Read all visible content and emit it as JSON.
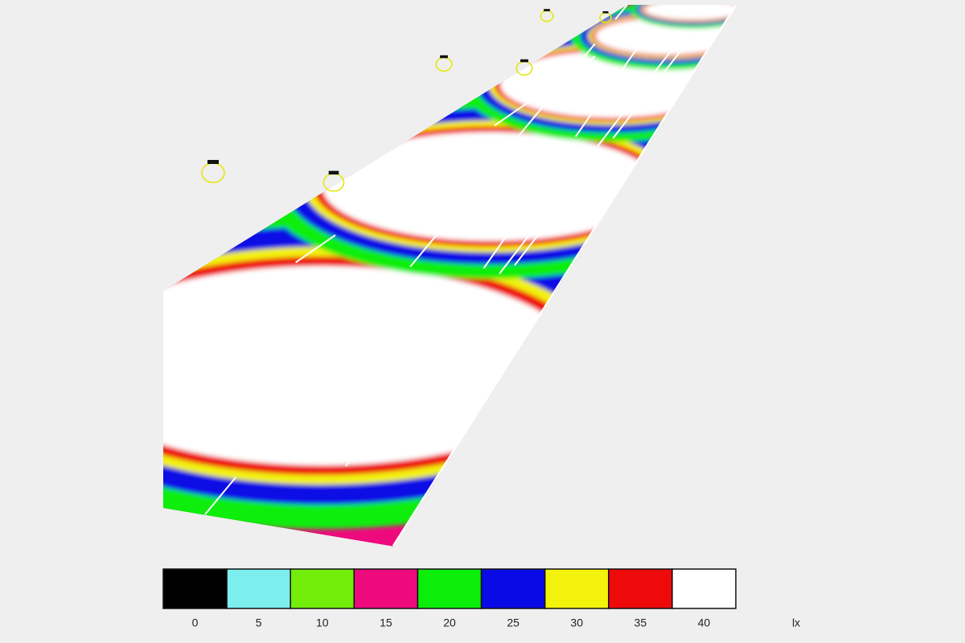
{
  "legend": {
    "unit": "lx",
    "entries": [
      {
        "label": "0",
        "color": "#000000"
      },
      {
        "label": "5",
        "color": "#7deeee"
      },
      {
        "label": "10",
        "color": "#73ee0a"
      },
      {
        "label": "15",
        "color": "#ee0a7d"
      },
      {
        "label": "20",
        "color": "#0aee0a"
      },
      {
        "label": "25",
        "color": "#0a0ae6"
      },
      {
        "label": "30",
        "color": "#f2f20a"
      },
      {
        "label": "35",
        "color": "#ee0a0a"
      },
      {
        "label": "40",
        "color": "#ffffff"
      }
    ]
  }
}
